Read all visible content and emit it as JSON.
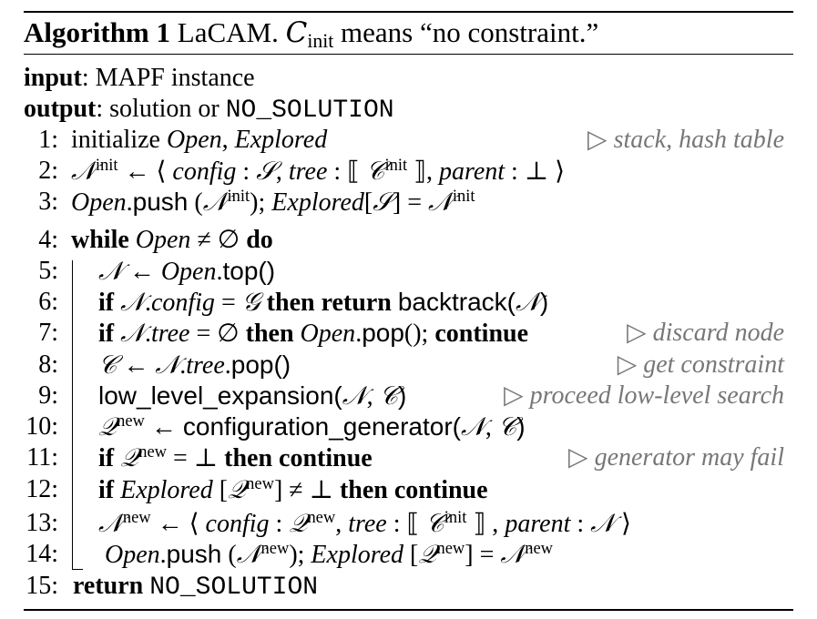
{
  "caption": {
    "label": "Algorithm 1",
    "title": "LaCAM.",
    "c_symbol": "C",
    "c_sub": "init",
    "rest": "means “no constraint.”"
  },
  "input": {
    "keyword": "input",
    "sep": ":",
    "text": "MAPF instance"
  },
  "output": {
    "keyword": "output",
    "sep": ":",
    "text": "solution or",
    "code": "NO_SOLUTION"
  },
  "lines": [
    {
      "num": "1:",
      "text": "initialize Open, Explored",
      "comment": "▷ stack, hash table"
    },
    {
      "num": "2:",
      "text": "𝒩init ← ⟨ config : 𝒮, tree : ⟦ 𝒞init ⟧, parent : ⊥ ⟩",
      "comment": ""
    },
    {
      "num": "3:",
      "text": "Open.push (𝒩init); Explored[𝒮] = 𝒩init",
      "comment": ""
    },
    {
      "num": "4:",
      "text": "while Open ≠ ∅ do",
      "comment": ""
    },
    {
      "num": "5:",
      "text": "𝒩 ← Open.top()",
      "comment": ""
    },
    {
      "num": "6:",
      "text": "if 𝒩.config = 𝒢 then return backtrack(𝒩)",
      "comment": ""
    },
    {
      "num": "7:",
      "text": "if 𝒩.tree = ∅ then Open.pop(); continue",
      "comment": "▷ discard node"
    },
    {
      "num": "8:",
      "text": "𝒞 ← 𝒩.tree.pop()",
      "comment": "▷ get constraint"
    },
    {
      "num": "9:",
      "text": "low_level_expansion(𝒩, 𝒞)",
      "comment": "▷ proceed low-level search"
    },
    {
      "num": "10:",
      "text": "𝒬new ← configuration_generator(𝒩, 𝒞)",
      "comment": ""
    },
    {
      "num": "11:",
      "text": "if 𝒬new = ⊥ then continue",
      "comment": "▷ generator may fail"
    },
    {
      "num": "12:",
      "text": "if Explored [𝒬new] ≠ ⊥ then continue",
      "comment": ""
    },
    {
      "num": "13:",
      "text": "𝒩new ← ⟨ config : 𝒬new, tree : ⟦ 𝒞init ⟧ , parent : 𝒩 ⟩",
      "comment": ""
    },
    {
      "num": "14:",
      "text": "Open.push (𝒩new); Explored [𝒬new] = 𝒩new",
      "comment": ""
    },
    {
      "num": "15:",
      "text": "return NO_SOLUTION",
      "comment": ""
    }
  ]
}
